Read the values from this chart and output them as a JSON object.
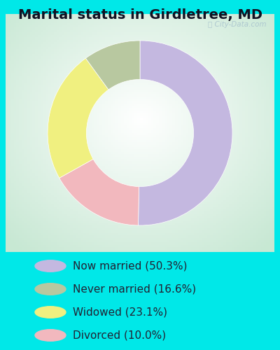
{
  "title": "Marital status in Girdletree, MD",
  "slices": [
    50.3,
    16.6,
    23.1,
    10.0
  ],
  "labels": [
    "Now married (50.3%)",
    "Divorced (10.0%)",
    "Widowed (23.1%)",
    "Never married (16.6%)"
  ],
  "legend_order": [
    0,
    3,
    2,
    1
  ],
  "colors": [
    "#c4b8e0",
    "#f2b8be",
    "#f0f080",
    "#b8c8a0"
  ],
  "bg_cyan": "#00e8e8",
  "chart_bg_center": "#ffffff",
  "chart_bg_edge": "#c8e8d4",
  "watermark": "City-Data.com",
  "donut_width": 0.42,
  "start_angle": 90,
  "wedge_edge_color": "none",
  "title_fontsize": 14,
  "legend_fontsize": 11
}
